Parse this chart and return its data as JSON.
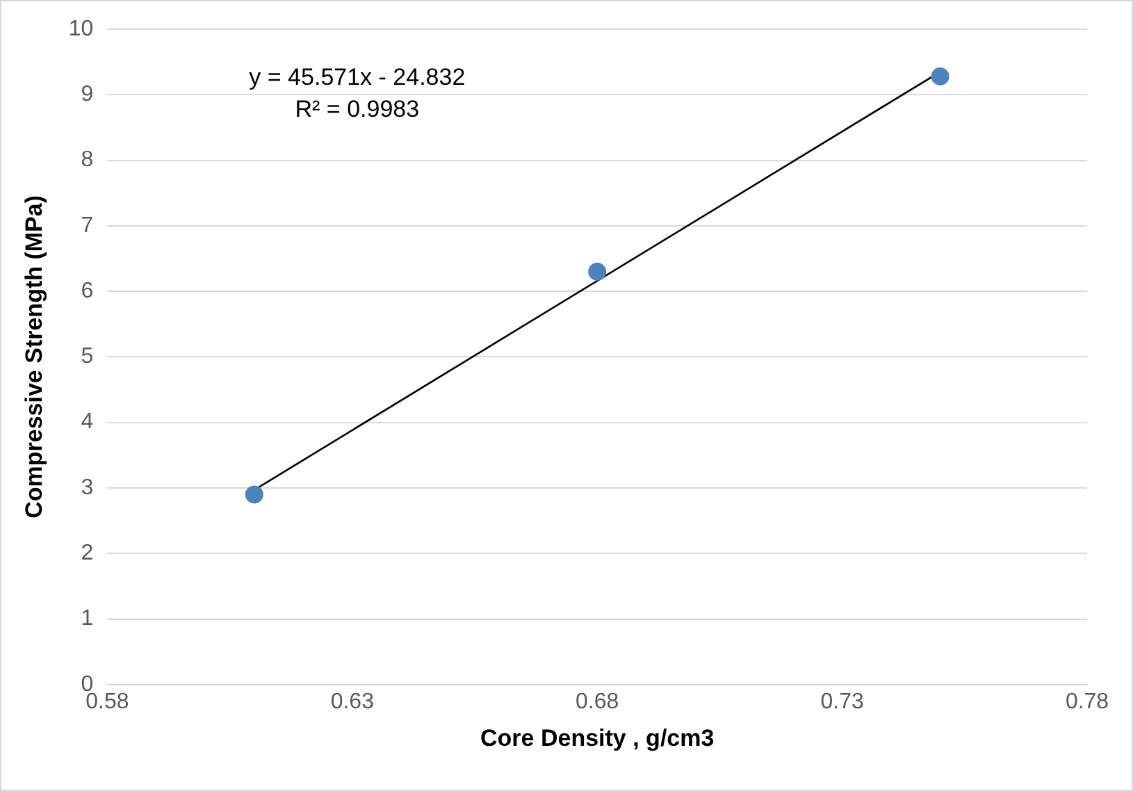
{
  "chart_data": {
    "type": "scatter",
    "xlabel": "Core Density , g/cm3",
    "ylabel": "Compressive Strength (MPa)",
    "series": [
      {
        "color": "#4f81bd",
        "marker": "circle",
        "x": [
          0.61,
          0.68,
          0.75
        ],
        "values": [
          2.9,
          6.3,
          9.28
        ]
      },
      {
        "type": "line",
        "color": "#000000",
        "x": [
          0.61,
          0.75
        ],
        "values": [
          2.97,
          9.35
        ]
      }
    ],
    "xlim": [
      0.58,
      0.78
    ],
    "xticks": [
      0.58,
      0.63,
      0.68,
      0.73,
      0.78
    ],
    "ylim": [
      0,
      10
    ],
    "yticks": [
      0,
      1,
      2,
      3,
      4,
      5,
      6,
      7,
      8,
      9,
      10
    ],
    "grid": "y",
    "legend": false,
    "annotations": [
      "y = 45.571x - 24.832",
      "R² = 0.9983"
    ]
  }
}
